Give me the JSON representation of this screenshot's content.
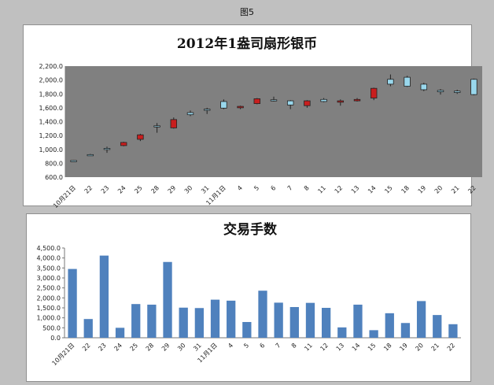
{
  "figure": {
    "title": "图5"
  },
  "chart_data": [
    {
      "type": "candlestick",
      "title": "2012年1盎司扇形银币",
      "xlabel": "",
      "ylabel": "",
      "ylim": [
        600,
        2200
      ],
      "y_ticks": [
        "2,200.0",
        "2,000.0",
        "1,800.0",
        "1,600.0",
        "1,400.0",
        "1,200.0",
        "1,000.0",
        "800.0",
        "600.0"
      ],
      "y_tick_values": [
        2200,
        2000,
        1800,
        1600,
        1400,
        1200,
        1000,
        800,
        600
      ],
      "categories": [
        "10月21日",
        "22",
        "23",
        "24",
        "25",
        "28",
        "29",
        "30",
        "31",
        "11月1日",
        "4",
        "5",
        "6",
        "7",
        "8",
        "11",
        "12",
        "13",
        "14",
        "15",
        "18",
        "19",
        "20",
        "21",
        "22"
      ],
      "ohlc": [
        {
          "open": 840,
          "high": 845,
          "low": 835,
          "close": 840
        },
        {
          "open": 925,
          "high": 935,
          "low": 920,
          "close": 925
        },
        {
          "open": 1010,
          "high": 1040,
          "low": 950,
          "close": 1015
        },
        {
          "open": 1100,
          "high": 1110,
          "low": 1045,
          "close": 1055
        },
        {
          "open": 1210,
          "high": 1225,
          "low": 1120,
          "close": 1145
        },
        {
          "open": 1340,
          "high": 1380,
          "low": 1240,
          "close": 1340
        },
        {
          "open": 1430,
          "high": 1460,
          "low": 1300,
          "close": 1310
        },
        {
          "open": 1500,
          "high": 1560,
          "low": 1480,
          "close": 1530
        },
        {
          "open": 1580,
          "high": 1600,
          "low": 1510,
          "close": 1580
        },
        {
          "open": 1595,
          "high": 1720,
          "low": 1580,
          "close": 1690
        },
        {
          "open": 1620,
          "high": 1630,
          "low": 1580,
          "close": 1600
        },
        {
          "open": 1730,
          "high": 1740,
          "low": 1650,
          "close": 1660
        },
        {
          "open": 1700,
          "high": 1760,
          "low": 1690,
          "close": 1715
        },
        {
          "open": 1640,
          "high": 1710,
          "low": 1580,
          "close": 1700
        },
        {
          "open": 1700,
          "high": 1710,
          "low": 1600,
          "close": 1630
        },
        {
          "open": 1690,
          "high": 1740,
          "low": 1680,
          "close": 1720
        },
        {
          "open": 1700,
          "high": 1720,
          "low": 1630,
          "close": 1680
        },
        {
          "open": 1720,
          "high": 1740,
          "low": 1690,
          "close": 1700
        },
        {
          "open": 1880,
          "high": 1890,
          "low": 1710,
          "close": 1740
        },
        {
          "open": 1940,
          "high": 2080,
          "low": 1910,
          "close": 2010
        },
        {
          "open": 1910,
          "high": 2060,
          "low": 1900,
          "close": 2040
        },
        {
          "open": 1860,
          "high": 1960,
          "low": 1840,
          "close": 1940
        },
        {
          "open": 1830,
          "high": 1870,
          "low": 1790,
          "close": 1850
        },
        {
          "open": 1820,
          "high": 1860,
          "low": 1800,
          "close": 1840
        },
        {
          "open": 1790,
          "high": 2020,
          "low": 1780,
          "close": 2010
        }
      ],
      "colors": {
        "plot_bg": "#808080",
        "up": "#99d7ec",
        "down": "#c81e1e",
        "wick": "#222222"
      },
      "grid": false
    },
    {
      "type": "bar",
      "title": "交易手数",
      "xlabel": "",
      "ylabel": "",
      "ylim": [
        0,
        4500
      ],
      "y_ticks": [
        "4,500.0",
        "4,000.0",
        "3,500.0",
        "3,000.0",
        "2,500.0",
        "2,000.0",
        "1,500.0",
        "1,000.0",
        "500.0",
        "0.0"
      ],
      "y_tick_values": [
        4500,
        4000,
        3500,
        3000,
        2500,
        2000,
        1500,
        1000,
        500,
        0
      ],
      "categories": [
        "10月21日",
        "22",
        "23",
        "24",
        "25",
        "28",
        "29",
        "30",
        "31",
        "11月1日",
        "4",
        "5",
        "6",
        "7",
        "8",
        "11",
        "12",
        "13",
        "14",
        "15",
        "18",
        "19",
        "20",
        "21",
        "22"
      ],
      "values": [
        3450,
        940,
        4120,
        500,
        1690,
        1660,
        3800,
        1510,
        1490,
        1910,
        1860,
        790,
        2360,
        1760,
        1540,
        1750,
        1500,
        520,
        1660,
        380,
        1230,
        740,
        1840,
        1140,
        680
      ],
      "colors": {
        "bar": "#4f81bd",
        "plot_bg": "#ffffff"
      },
      "grid": false
    }
  ]
}
